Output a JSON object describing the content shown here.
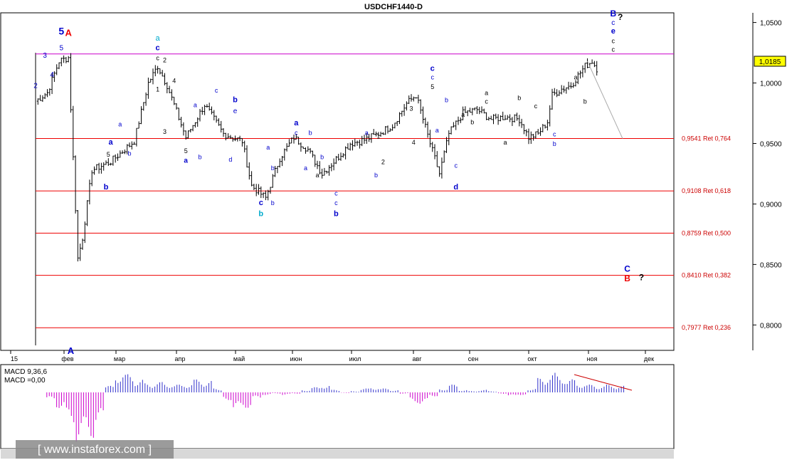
{
  "chart_data": {
    "type": "candlestick",
    "title": "USDCHF1440-D",
    "y_range": [
      0.779,
      1.058
    ],
    "price_ticks": [
      "1,0500",
      "1,0000",
      "0,9500",
      "0,9000",
      "0,8500",
      "0,8000"
    ],
    "current_price": "1,0185",
    "month_labels": [
      "15",
      "фев",
      "мар",
      "апр",
      "май",
      "июн",
      "июл",
      "авг",
      "сен",
      "окт",
      "ноя",
      "дек"
    ],
    "fib_levels": [
      {
        "value": 0.9541,
        "label": "0,9541 Ret 0,764"
      },
      {
        "value": 0.9108,
        "label": "0,9108 Ret 0,618"
      },
      {
        "value": 0.8759,
        "label": "0,8759 Ret 0,500"
      },
      {
        "value": 0.841,
        "label": "0,8410 Ret 0,382"
      },
      {
        "value": 0.7977,
        "label": "0,7977 Ret 0,236"
      }
    ],
    "resistance_level": 1.024,
    "forecast": {
      "from_day": 235,
      "from_price": 1.018,
      "to_day": 250,
      "to_price": 0.954
    },
    "price_path": [
      [
        0,
        0.985
      ],
      [
        5,
        0.992
      ],
      [
        10,
        1.018
      ],
      [
        14,
        1.021
      ],
      [
        18,
        0.855
      ],
      [
        20,
        0.872
      ],
      [
        24,
        0.928
      ],
      [
        32,
        0.935
      ],
      [
        42,
        0.952
      ],
      [
        48,
        1.0
      ],
      [
        52,
        1.014
      ],
      [
        56,
        0.998
      ],
      [
        64,
        0.955
      ],
      [
        72,
        0.982
      ],
      [
        80,
        0.958
      ],
      [
        88,
        0.952
      ],
      [
        92,
        0.915
      ],
      [
        98,
        0.905
      ],
      [
        104,
        0.938
      ],
      [
        110,
        0.955
      ],
      [
        116,
        0.945
      ],
      [
        122,
        0.925
      ],
      [
        128,
        0.937
      ],
      [
        134,
        0.95
      ],
      [
        140,
        0.953
      ],
      [
        146,
        0.958
      ],
      [
        152,
        0.965
      ],
      [
        158,
        0.983
      ],
      [
        162,
        0.99
      ],
      [
        168,
        0.95
      ],
      [
        172,
        0.925
      ],
      [
        176,
        0.958
      ],
      [
        182,
        0.975
      ],
      [
        188,
        0.978
      ],
      [
        194,
        0.97
      ],
      [
        200,
        0.972
      ],
      [
        206,
        0.97
      ],
      [
        210,
        0.955
      ],
      [
        214,
        0.958
      ],
      [
        218,
        0.968
      ],
      [
        220,
        0.99
      ],
      [
        224,
        0.995
      ],
      [
        228,
        0.998
      ],
      [
        234,
        1.014
      ],
      [
        237,
        1.018
      ],
      [
        239,
        1.012
      ]
    ],
    "macd": {
      "label_1": "MACD 9,36,6",
      "label_2": "MACD =0,00",
      "values": [
        0,
        -0.6,
        -1.2,
        -2.4,
        -3.8,
        -3.5,
        -2.5,
        0.5,
        1.5,
        1.4,
        1.0,
        0.7,
        0.8,
        0.7,
        0.6,
        0.7,
        1.0,
        0.9,
        0.3,
        -0.6,
        -1.4,
        -1.2,
        -0.5,
        -0.2,
        -0.1,
        -0.2,
        -0.1,
        0.2,
        0.4,
        0.6,
        0.2,
        -0.05,
        0.1,
        0.3,
        0.4,
        0.3,
        0.2,
        -0.1,
        -0.8,
        -0.9,
        -0.3,
        0.3,
        0.6,
        0.2,
        0.1,
        0.2,
        0.1,
        -0.1,
        -0.3,
        -0.2,
        0.3,
        1.1,
        1.5,
        1.3,
        1.0,
        0.7,
        0.6,
        0.5,
        0.6,
        0.5
      ],
      "trendline": "declining"
    },
    "wave_labels": [
      {
        "day": 0,
        "price": 0.996,
        "text": "2",
        "color": "#0000cc",
        "size": 10,
        "bold": false
      },
      {
        "day": 4,
        "price": 1.021,
        "text": "3",
        "color": "#0000cc",
        "size": 10,
        "bold": false
      },
      {
        "day": 7,
        "price": 1.005,
        "text": "4",
        "color": "#0000cc",
        "size": 10,
        "bold": false
      },
      {
        "day": 11,
        "price": 1.027,
        "text": "5",
        "color": "#0000cc",
        "size": 10,
        "bold": false
      },
      {
        "day": 11,
        "price": 1.04,
        "text": "5",
        "color": "#0000cc",
        "size": 14,
        "bold": true
      },
      {
        "day": 14,
        "price": 1.039,
        "text": "A",
        "color": "#ee0000",
        "size": 13,
        "bold": true
      },
      {
        "day": 32,
        "price": 0.949,
        "text": "a",
        "color": "#0000cc",
        "size": 11,
        "bold": true
      },
      {
        "day": 31,
        "price": 0.939,
        "text": "5",
        "color": "#000000",
        "size": 9,
        "bold": false
      },
      {
        "day": 30,
        "price": 0.912,
        "text": "b",
        "color": "#0000cc",
        "size": 11,
        "bold": true
      },
      {
        "day": 15,
        "price": 0.776,
        "text": "A",
        "color": "#0000cc",
        "size": 13,
        "bold": true
      },
      {
        "day": 36,
        "price": 0.964,
        "text": "a",
        "color": "#0000cc",
        "size": 9,
        "bold": false
      },
      {
        "day": 40,
        "price": 0.94,
        "text": "b",
        "color": "#0000cc",
        "size": 9,
        "bold": false
      },
      {
        "day": 52,
        "price": 1.035,
        "text": "a",
        "color": "#00aacc",
        "size": 11,
        "bold": false
      },
      {
        "day": 52,
        "price": 1.027,
        "text": "c",
        "color": "#0000cc",
        "size": 11,
        "bold": true
      },
      {
        "day": 52,
        "price": 1.019,
        "text": "c",
        "color": "#000000",
        "size": 9,
        "bold": false
      },
      {
        "day": 55,
        "price": 1.017,
        "text": "2",
        "color": "#000000",
        "size": 9,
        "bold": false
      },
      {
        "day": 52,
        "price": 0.993,
        "text": "1",
        "color": "#000000",
        "size": 9,
        "bold": false
      },
      {
        "day": 59,
        "price": 1.0,
        "text": "4",
        "color": "#000000",
        "size": 9,
        "bold": false
      },
      {
        "day": 55,
        "price": 0.958,
        "text": "3",
        "color": "#000000",
        "size": 9,
        "bold": false
      },
      {
        "day": 64,
        "price": 0.942,
        "text": "5",
        "color": "#000000",
        "size": 9,
        "bold": false
      },
      {
        "day": 64,
        "price": 0.934,
        "text": "a",
        "color": "#0000cc",
        "size": 10,
        "bold": true
      },
      {
        "day": 68,
        "price": 0.98,
        "text": "a",
        "color": "#0000cc",
        "size": 9,
        "bold": false
      },
      {
        "day": 70,
        "price": 0.937,
        "text": "b",
        "color": "#0000cc",
        "size": 9,
        "bold": false
      },
      {
        "day": 77,
        "price": 0.992,
        "text": "c",
        "color": "#0000cc",
        "size": 9,
        "bold": false
      },
      {
        "day": 85,
        "price": 0.984,
        "text": "b",
        "color": "#0000cc",
        "size": 11,
        "bold": true
      },
      {
        "day": 85,
        "price": 0.975,
        "text": "e",
        "color": "#0000cc",
        "size": 10,
        "bold": false
      },
      {
        "day": 83,
        "price": 0.935,
        "text": "d",
        "color": "#0000cc",
        "size": 9,
        "bold": false
      },
      {
        "day": 99,
        "price": 0.945,
        "text": "a",
        "color": "#0000cc",
        "size": 9,
        "bold": false
      },
      {
        "day": 101,
        "price": 0.928,
        "text": "b",
        "color": "#0000cc",
        "size": 9,
        "bold": false
      },
      {
        "day": 96,
        "price": 0.899,
        "text": "c",
        "color": "#0000cc",
        "size": 11,
        "bold": true
      },
      {
        "day": 96,
        "price": 0.89,
        "text": "b",
        "color": "#00aacc",
        "size": 11,
        "bold": true
      },
      {
        "day": 101,
        "price": 0.899,
        "text": "b",
        "color": "#0000cc",
        "size": 9,
        "bold": false
      },
      {
        "day": 111,
        "price": 0.965,
        "text": "a",
        "color": "#0000cc",
        "size": 11,
        "bold": true
      },
      {
        "day": 111,
        "price": 0.957,
        "text": "c",
        "color": "#0000cc",
        "size": 9,
        "bold": false
      },
      {
        "day": 117,
        "price": 0.957,
        "text": "b",
        "color": "#0000cc",
        "size": 9,
        "bold": false
      },
      {
        "day": 115,
        "price": 0.928,
        "text": "a",
        "color": "#0000cc",
        "size": 9,
        "bold": false
      },
      {
        "day": 120,
        "price": 0.922,
        "text": "a",
        "color": "#000000",
        "size": 9,
        "bold": false
      },
      {
        "day": 122,
        "price": 0.937,
        "text": "b",
        "color": "#0000cc",
        "size": 9,
        "bold": false
      },
      {
        "day": 128,
        "price": 0.907,
        "text": "c",
        "color": "#0000cc",
        "size": 9,
        "bold": false
      },
      {
        "day": 128,
        "price": 0.899,
        "text": "c",
        "color": "#0000cc",
        "size": 9,
        "bold": false
      },
      {
        "day": 128,
        "price": 0.89,
        "text": "b",
        "color": "#0000cc",
        "size": 11,
        "bold": true
      },
      {
        "day": 141,
        "price": 0.957,
        "text": "a",
        "color": "#0000cc",
        "size": 9,
        "bold": false
      },
      {
        "day": 146,
        "price": 0.954,
        "text": "1",
        "color": "#000000",
        "size": 9,
        "bold": false
      },
      {
        "day": 148,
        "price": 0.933,
        "text": "2",
        "color": "#000000",
        "size": 9,
        "bold": false
      },
      {
        "day": 145,
        "price": 0.922,
        "text": "b",
        "color": "#0000cc",
        "size": 9,
        "bold": false
      },
      {
        "day": 160,
        "price": 0.977,
        "text": "3",
        "color": "#000000",
        "size": 9,
        "bold": false
      },
      {
        "day": 161,
        "price": 0.949,
        "text": "4",
        "color": "#000000",
        "size": 9,
        "bold": false
      },
      {
        "day": 169,
        "price": 1.01,
        "text": "c",
        "color": "#0000cc",
        "size": 11,
        "bold": true
      },
      {
        "day": 169,
        "price": 1.003,
        "text": "c",
        "color": "#0000cc",
        "size": 9,
        "bold": false
      },
      {
        "day": 169,
        "price": 0.995,
        "text": "5",
        "color": "#000000",
        "size": 9,
        "bold": false
      },
      {
        "day": 175,
        "price": 0.984,
        "text": "b",
        "color": "#0000cc",
        "size": 9,
        "bold": false
      },
      {
        "day": 171,
        "price": 0.959,
        "text": "a",
        "color": "#0000cc",
        "size": 9,
        "bold": false
      },
      {
        "day": 179,
        "price": 0.93,
        "text": "c",
        "color": "#0000cc",
        "size": 9,
        "bold": false
      },
      {
        "day": 179,
        "price": 0.912,
        "text": "d",
        "color": "#0000cc",
        "size": 11,
        "bold": true
      },
      {
        "day": 182,
        "price": 0.972,
        "text": "a",
        "color": "#000000",
        "size": 9,
        "bold": false
      },
      {
        "day": 186,
        "price": 0.966,
        "text": "b",
        "color": "#000000",
        "size": 9,
        "bold": false
      },
      {
        "day": 192,
        "price": 0.99,
        "text": "a",
        "color": "#000000",
        "size": 9,
        "bold": false
      },
      {
        "day": 192,
        "price": 0.983,
        "text": "c",
        "color": "#000000",
        "size": 9,
        "bold": false
      },
      {
        "day": 200,
        "price": 0.949,
        "text": "a",
        "color": "#000000",
        "size": 9,
        "bold": false
      },
      {
        "day": 206,
        "price": 0.986,
        "text": "b",
        "color": "#000000",
        "size": 9,
        "bold": false
      },
      {
        "day": 213,
        "price": 0.979,
        "text": "c",
        "color": "#000000",
        "size": 9,
        "bold": false
      },
      {
        "day": 221,
        "price": 0.956,
        "text": "c",
        "color": "#0000cc",
        "size": 9,
        "bold": false
      },
      {
        "day": 221,
        "price": 0.948,
        "text": "b",
        "color": "#0000cc",
        "size": 9,
        "bold": false
      },
      {
        "day": 230,
        "price": 1.003,
        "text": "a",
        "color": "#000000",
        "size": 9,
        "bold": false
      },
      {
        "day": 234,
        "price": 0.983,
        "text": "b",
        "color": "#000000",
        "size": 9,
        "bold": false
      },
      {
        "day": 246,
        "price": 1.055,
        "text": "B",
        "color": "#0000cc",
        "size": 12,
        "bold": true
      },
      {
        "day": 249,
        "price": 1.052,
        "text": "?",
        "color": "#000000",
        "size": 12,
        "bold": true
      },
      {
        "day": 246,
        "price": 1.048,
        "text": "c",
        "color": "#0000cc",
        "size": 10,
        "bold": false
      },
      {
        "day": 246,
        "price": 1.041,
        "text": "e",
        "color": "#0000cc",
        "size": 11,
        "bold": true
      },
      {
        "day": 246,
        "price": 1.033,
        "text": "c",
        "color": "#000000",
        "size": 9,
        "bold": false
      },
      {
        "day": 246,
        "price": 1.026,
        "text": "c",
        "color": "#000000",
        "size": 9,
        "bold": false
      },
      {
        "day": 252,
        "price": 0.844,
        "text": "C",
        "color": "#0000cc",
        "size": 12,
        "bold": true
      },
      {
        "day": 252,
        "price": 0.836,
        "text": "B",
        "color": "#ee0000",
        "size": 12,
        "bold": true
      },
      {
        "day": 258,
        "price": 0.837,
        "text": "?",
        "color": "#000000",
        "size": 12,
        "bold": true
      }
    ]
  },
  "watermark": {
    "text": "[ www.instaforex.com ]"
  }
}
